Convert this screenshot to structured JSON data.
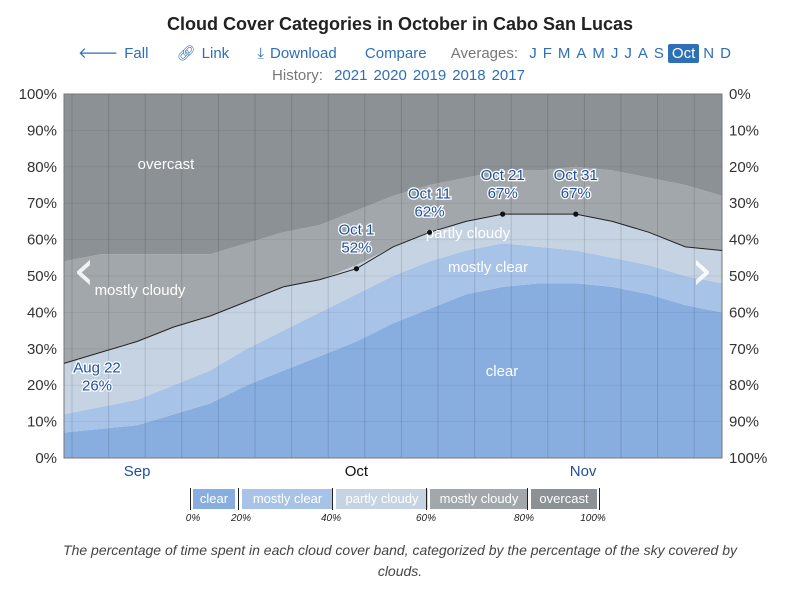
{
  "header": {
    "title": "Cloud Cover Categories in October in Cabo San Lucas",
    "fall": "Fall",
    "link": "Link",
    "download": "Download",
    "compare": "Compare",
    "averages_label": "Averages:",
    "months": [
      "J",
      "F",
      "M",
      "A",
      "M",
      "J",
      "J",
      "A",
      "S",
      "Oct",
      "N",
      "D"
    ],
    "selected_month_index": 9,
    "history_label": "History:",
    "years": [
      "2021",
      "2020",
      "2019",
      "2018",
      "2017"
    ]
  },
  "nav_arrows": {
    "left": "‹",
    "right": "›"
  },
  "chart_data": {
    "type": "area",
    "stacked": true,
    "title": "Cloud Cover Categories in October in Cabo San Lucas",
    "x_ticks": [
      "Sep",
      "Oct",
      "Nov"
    ],
    "y_ticks_left": [
      "0%",
      "10%",
      "20%",
      "30%",
      "40%",
      "50%",
      "60%",
      "70%",
      "80%",
      "90%",
      "100%"
    ],
    "y_ticks_right": [
      "100%",
      "90%",
      "80%",
      "70%",
      "60%",
      "50%",
      "40%",
      "30%",
      "20%",
      "10%",
      "0%"
    ],
    "ylim": [
      0,
      100
    ],
    "x_dates": [
      "Aug 22",
      "Aug 27",
      "Sep 1",
      "Sep 6",
      "Sep 11",
      "Sep 16",
      "Sep 21",
      "Sep 26",
      "Oct 1",
      "Oct 6",
      "Oct 11",
      "Oct 16",
      "Oct 21",
      "Oct 26",
      "Oct 31",
      "Nov 5",
      "Nov 10",
      "Nov 15",
      "Nov 20"
    ],
    "series": [
      {
        "name": "clear",
        "color": "#88aee0",
        "values": [
          7,
          8,
          9,
          12,
          15,
          20,
          24,
          28,
          32,
          37,
          41,
          45,
          47,
          48,
          48,
          47,
          45,
          42,
          40
        ]
      },
      {
        "name": "mostly clear",
        "color": "#a8c3e8",
        "values": [
          5,
          6,
          7,
          8,
          9,
          10,
          11,
          12,
          13,
          13,
          13,
          12,
          12,
          10,
          9,
          8,
          8,
          8,
          8
        ]
      },
      {
        "name": "partly cloudy",
        "color": "#c6d3e2",
        "values": [
          14,
          15,
          16,
          16,
          15,
          13,
          12,
          9,
          8,
          8,
          8,
          8,
          8,
          9,
          10,
          10,
          9,
          8,
          9
        ]
      },
      {
        "name": "mostly cloudy",
        "color": "#a2a7ab",
        "values": [
          28,
          27,
          24,
          20,
          17,
          16,
          15,
          15,
          15,
          14,
          13,
          12,
          12,
          12,
          13,
          14,
          15,
          17,
          15
        ]
      },
      {
        "name": "overcast",
        "color": "#8c9196",
        "values": [
          46,
          44,
          44,
          44,
          44,
          41,
          38,
          36,
          32,
          28,
          25,
          23,
          21,
          21,
          20,
          21,
          23,
          25,
          28
        ]
      }
    ],
    "line": {
      "name": "clear/mostly clear/partly cloudy",
      "values": [
        26,
        29,
        32,
        36,
        39,
        43,
        47,
        49,
        52,
        58,
        62,
        65,
        67,
        67,
        67,
        65,
        62,
        58,
        57
      ]
    },
    "annotations": [
      {
        "date": "Aug 22",
        "value": 26,
        "label": "26%"
      },
      {
        "date": "Oct 1",
        "value": 52,
        "label": "52%"
      },
      {
        "date": "Oct 11",
        "value": 62,
        "label": "62%"
      },
      {
        "date": "Oct 21",
        "value": 67,
        "label": "67%"
      },
      {
        "date": "Oct 31",
        "value": 67,
        "label": "67%"
      }
    ],
    "region_labels": [
      "overcast",
      "mostly cloudy",
      "partly cloudy",
      "mostly clear",
      "clear"
    ],
    "legend": {
      "items": [
        {
          "label": "clear",
          "color": "#88aee0"
        },
        {
          "label": "mostly clear",
          "color": "#a8c3e8"
        },
        {
          "label": "partly cloudy",
          "color": "#c6d3e2"
        },
        {
          "label": "mostly cloudy",
          "color": "#a2a7ab"
        },
        {
          "label": "overcast",
          "color": "#8c9196"
        }
      ],
      "ticks": [
        "0%",
        "20%",
        "40%",
        "60%",
        "80%",
        "100%"
      ]
    },
    "caption": "The percentage of time spent in each cloud cover band, categorized by the percentage of the sky covered by clouds."
  }
}
